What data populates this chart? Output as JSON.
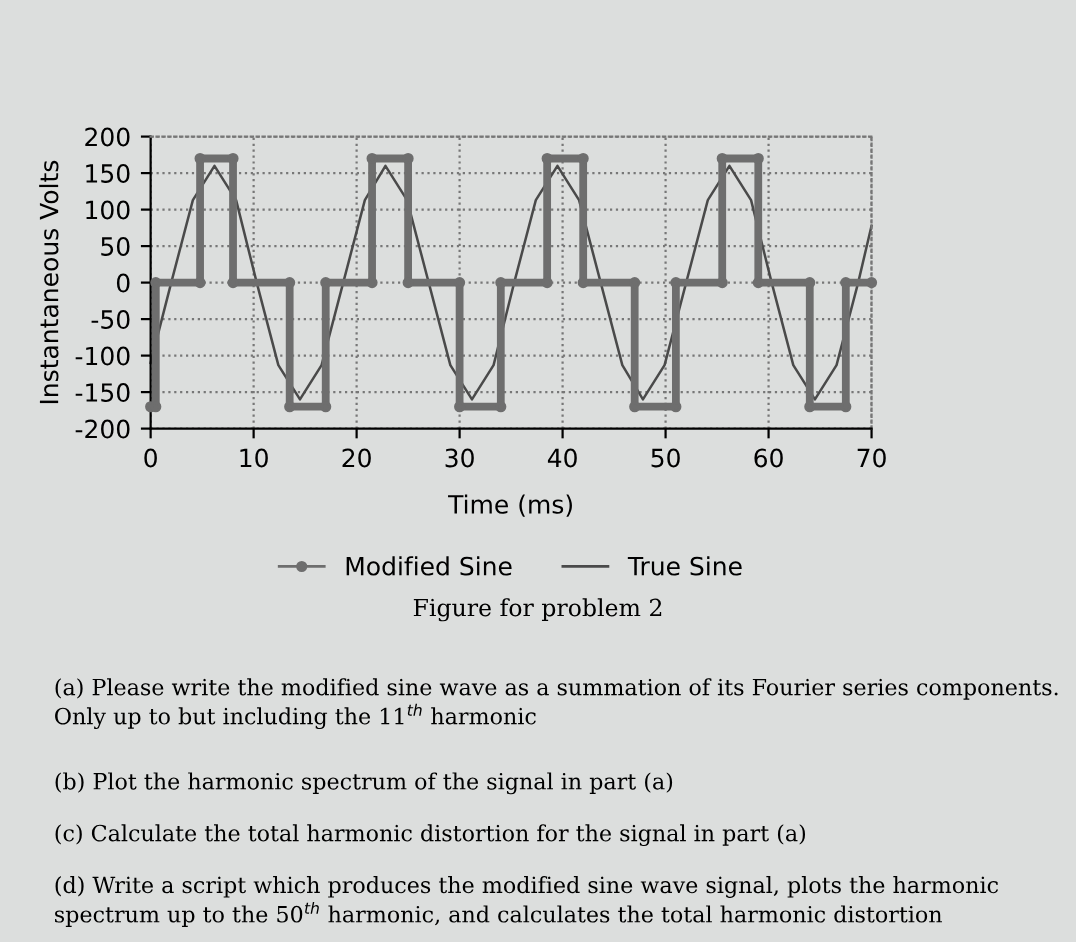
{
  "chart_data": {
    "type": "line",
    "xlabel": "Time (ms)",
    "ylabel": "Instantaneous Volts",
    "xlim": [
      0,
      70
    ],
    "xticks": [
      0,
      10,
      20,
      30,
      40,
      50,
      60,
      70
    ],
    "ylim": [
      -200,
      200
    ],
    "yticks": [
      -200,
      -150,
      -100,
      -50,
      0,
      50,
      100,
      150,
      200
    ],
    "grid": true,
    "legend": "bottom",
    "series": [
      {
        "name": "Modified Sine",
        "color": "#6e6e6e",
        "marker": "circle",
        "x": [
          0,
          0.5,
          0.5,
          4.8,
          4.8,
          8,
          8,
          13.5,
          13.5,
          17,
          17,
          21.5,
          21.5,
          25,
          25,
          30,
          30,
          34,
          34,
          38.5,
          38.5,
          42,
          42,
          47,
          47,
          51,
          51,
          55.5,
          55.5,
          59,
          59,
          64,
          64,
          67.5,
          67.5,
          70
        ],
        "values": [
          -170,
          -170,
          0,
          0,
          170,
          170,
          0,
          0,
          -170,
          -170,
          0,
          0,
          170,
          170,
          0,
          0,
          -170,
          -170,
          0,
          0,
          170,
          170,
          0,
          0,
          -170,
          -170,
          0,
          0,
          170,
          170,
          0,
          0,
          -170,
          -170,
          0,
          0
        ]
      },
      {
        "name": "True Sine",
        "color": "#4a4a4a",
        "marker": "none",
        "x": [
          0,
          2,
          4.1,
          6.2,
          8.3,
          10.3,
          12.4,
          14.5,
          16.6,
          18.7,
          20.8,
          22.8,
          24.9,
          27,
          29.1,
          31.2,
          33.3,
          35.3,
          37.4,
          39.5,
          41.6,
          43.7,
          45.8,
          47.8,
          49.9,
          52,
          54.1,
          56.2,
          58.3,
          60.3,
          62.4,
          64.5,
          66.6,
          68.7,
          70
        ],
        "values": [
          -110,
          0,
          113,
          160,
          113,
          0,
          -113,
          -160,
          -113,
          0,
          113,
          160,
          113,
          0,
          -113,
          -160,
          -113,
          0,
          113,
          160,
          113,
          0,
          -113,
          -160,
          -113,
          0,
          113,
          160,
          113,
          0,
          -113,
          -160,
          -113,
          0,
          78
        ]
      }
    ],
    "annotations": [
      "Figure for problem 2",
      "(a) Please write the modified sine wave as a summation of its Fourier series components. Only up to but including the 11$^{th}$ harmonic",
      "(b) Plot the harmonic spectrum of the signal in part (a)",
      "(c) Calculate the total harmonic distortion for the signal in part (a)",
      "(d) Write a script which produces the modified sine wave signal, plots the harmonic spectrum up to the 50$^{th}$ harmonic, and calculates the total harmonic distortion"
    ]
  }
}
